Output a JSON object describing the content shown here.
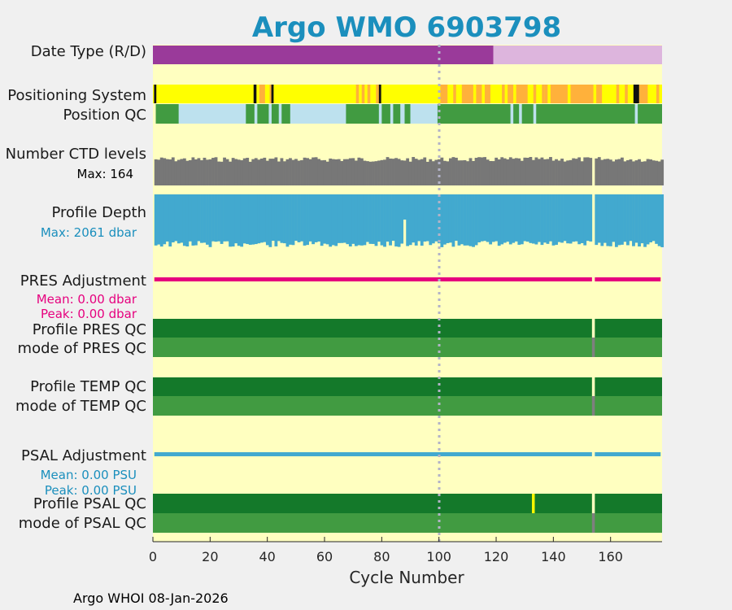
{
  "chart_data": {
    "type": "heatmap",
    "title": "Argo WMO 6903798",
    "xlabel": "Cycle Number",
    "xlim": [
      0,
      178
    ],
    "xticks": [
      0,
      20,
      40,
      60,
      80,
      100,
      120,
      140,
      160
    ],
    "dashed_line_at": 100,
    "footer": "Argo WHOI 08-Jan-2026",
    "colors": {
      "title": "#1b8fbd",
      "background": "#ffffc0",
      "realtime": "#9a3a9a",
      "delayed": "#ddb5dd",
      "gps": "#ffff00",
      "argos": "#ffb13b",
      "pos_none": "#111111",
      "qc_good_dark": "#14792a",
      "qc_good": "#419b41",
      "qc_probably": "#bde1ee",
      "qc_bad": "#f6f600",
      "missing": "#7f7f7f",
      "ctd": "#777777",
      "depth": "#42a9cf",
      "pres_adj": "#e6007e",
      "psal_adj": "#42a9cf"
    },
    "rows": {
      "date_type": {
        "label": "Date Type (R/D)",
        "segments": [
          {
            "from": 0,
            "to": 119,
            "mode": "R"
          },
          {
            "from": 119,
            "to": 178,
            "mode": "D"
          }
        ]
      },
      "positioning_system": {
        "label": "Positioning System",
        "base": "GPS",
        "segments": [
          {
            "from": 0.4,
            "to": 1.2,
            "value": "none"
          },
          {
            "from": 35.2,
            "to": 36.2,
            "value": "none"
          },
          {
            "from": 37.2,
            "to": 39.2,
            "value": "Argos"
          },
          {
            "from": 40.8,
            "to": 41.4,
            "value": "Argos"
          },
          {
            "from": 41.4,
            "to": 42.2,
            "value": "none"
          },
          {
            "from": 71.0,
            "to": 72.0,
            "value": "Argos"
          },
          {
            "from": 73.0,
            "to": 74.0,
            "value": "Argos"
          },
          {
            "from": 75.0,
            "to": 76.0,
            "value": "Argos"
          },
          {
            "from": 78.0,
            "to": 79.0,
            "value": "Argos"
          },
          {
            "from": 79.0,
            "to": 79.8,
            "value": "none"
          },
          {
            "from": 100.5,
            "to": 103.0,
            "value": "Argos"
          },
          {
            "from": 105.0,
            "to": 106.0,
            "value": "Argos"
          },
          {
            "from": 108.0,
            "to": 112.0,
            "value": "Argos"
          },
          {
            "from": 113.0,
            "to": 115.0,
            "value": "Argos"
          },
          {
            "from": 116.0,
            "to": 118.0,
            "value": "Argos"
          },
          {
            "from": 122.0,
            "to": 123.0,
            "value": "Argos"
          },
          {
            "from": 124.0,
            "to": 126.0,
            "value": "Argos"
          },
          {
            "from": 127.0,
            "to": 131.0,
            "value": "Argos"
          },
          {
            "from": 133.0,
            "to": 134.0,
            "value": "Argos"
          },
          {
            "from": 136.0,
            "to": 137.0,
            "value": "Argos"
          },
          {
            "from": 137.0,
            "to": 138.0,
            "value": "Argos"
          },
          {
            "from": 139.0,
            "to": 145.0,
            "value": "Argos"
          },
          {
            "from": 146.0,
            "to": 154.0,
            "value": "Argos"
          },
          {
            "from": 155.0,
            "to": 157.0,
            "value": "Argos"
          },
          {
            "from": 162.0,
            "to": 163.0,
            "value": "Argos"
          },
          {
            "from": 165.0,
            "to": 166.0,
            "value": "Argos"
          },
          {
            "from": 168.0,
            "to": 170.0,
            "value": "none"
          },
          {
            "from": 170.0,
            "to": 173.0,
            "value": "Argos"
          },
          {
            "from": 176.0,
            "to": 177.0,
            "value": "Argos"
          }
        ]
      },
      "position_qc": {
        "label": "Position QC",
        "base": "1",
        "segments": [
          {
            "from": 9.0,
            "to": 32.5,
            "value": "2"
          },
          {
            "from": 35.5,
            "to": 36.5,
            "value": "2"
          },
          {
            "from": 40.5,
            "to": 41.5,
            "value": "2"
          },
          {
            "from": 44.0,
            "to": 45.0,
            "value": "2"
          },
          {
            "from": 48.0,
            "to": 67.5,
            "value": "2"
          },
          {
            "from": 79.0,
            "to": 80.0,
            "value": "2"
          },
          {
            "from": 83.0,
            "to": 84.0,
            "value": "2"
          },
          {
            "from": 86.5,
            "to": 88.0,
            "value": "2"
          },
          {
            "from": 90.0,
            "to": 99.5,
            "value": "2"
          },
          {
            "from": 125.0,
            "to": 126.0,
            "value": "2"
          },
          {
            "from": 128.0,
            "to": 129.0,
            "value": "2"
          },
          {
            "from": 133.0,
            "to": 134.0,
            "value": "2"
          },
          {
            "from": 168.5,
            "to": 169.5,
            "value": "2"
          }
        ]
      },
      "ctd_levels": {
        "label": "Number CTD levels",
        "max_text": "Max: 164",
        "max": 164,
        "gaps": [
          154
        ]
      },
      "profile_depth": {
        "label": "Profile Depth",
        "max_text": "Max: 2061 dbar",
        "max": 2061,
        "shallow_cycle": 88,
        "gaps": [
          154
        ]
      },
      "pres_adjustment": {
        "label": "PRES Adjustment",
        "mean_text": "Mean: 0.00 dbar",
        "peak_text": "Peak: 0.00 dbar",
        "mean": 0.0,
        "peak": 0.0,
        "gaps": [
          154
        ]
      },
      "profile_pres_qc": {
        "label": "Profile PRES QC",
        "value": "A",
        "gaps": [
          154
        ]
      },
      "mode_pres_qc": {
        "label": "mode of PRES QC",
        "value": "1",
        "missing": [
          154
        ]
      },
      "profile_temp_qc": {
        "label": "Profile TEMP QC",
        "value": "A",
        "gaps": [
          154
        ]
      },
      "mode_temp_qc": {
        "label": "mode of TEMP QC",
        "value": "1",
        "missing": [
          154
        ]
      },
      "psal_adjustment": {
        "label": "PSAL Adjustment",
        "mean_text": "Mean: 0.00 PSU",
        "peak_text": "Peak: 0.00 PSU",
        "mean": 0.0,
        "peak": 0.0,
        "gaps": [
          154
        ]
      },
      "profile_psal_qc": {
        "label": "Profile PSAL QC",
        "value": "A",
        "gaps": [
          154
        ],
        "flagged": [
          133
        ]
      },
      "mode_psal_qc": {
        "label": "mode of PSAL QC",
        "value": "1",
        "missing": [
          154
        ]
      }
    }
  }
}
